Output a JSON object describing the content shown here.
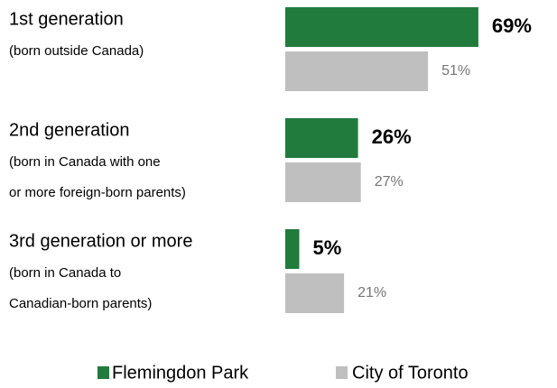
{
  "chart_data": {
    "type": "bar",
    "orientation": "horizontal",
    "categories": [
      "1st generation",
      "2nd generation",
      "3rd generation or more"
    ],
    "category_notes": [
      [
        "(born outside Canada)"
      ],
      [
        "(born in Canada with one",
        "or more foreign-born parents)"
      ],
      [
        "(born in Canada to",
        "Canadian-born parents)"
      ]
    ],
    "series": [
      {
        "name": "Flemingdon Park",
        "color": "#217b3c",
        "values": [
          69,
          26,
          5
        ],
        "value_labels": [
          "69%",
          "26%",
          "5%"
        ]
      },
      {
        "name": "City of Toronto",
        "color": "#bfbfbf",
        "values": [
          51,
          27,
          21
        ],
        "value_labels": [
          "51%",
          "27%",
          "21%"
        ]
      }
    ],
    "legend": "bottom"
  }
}
